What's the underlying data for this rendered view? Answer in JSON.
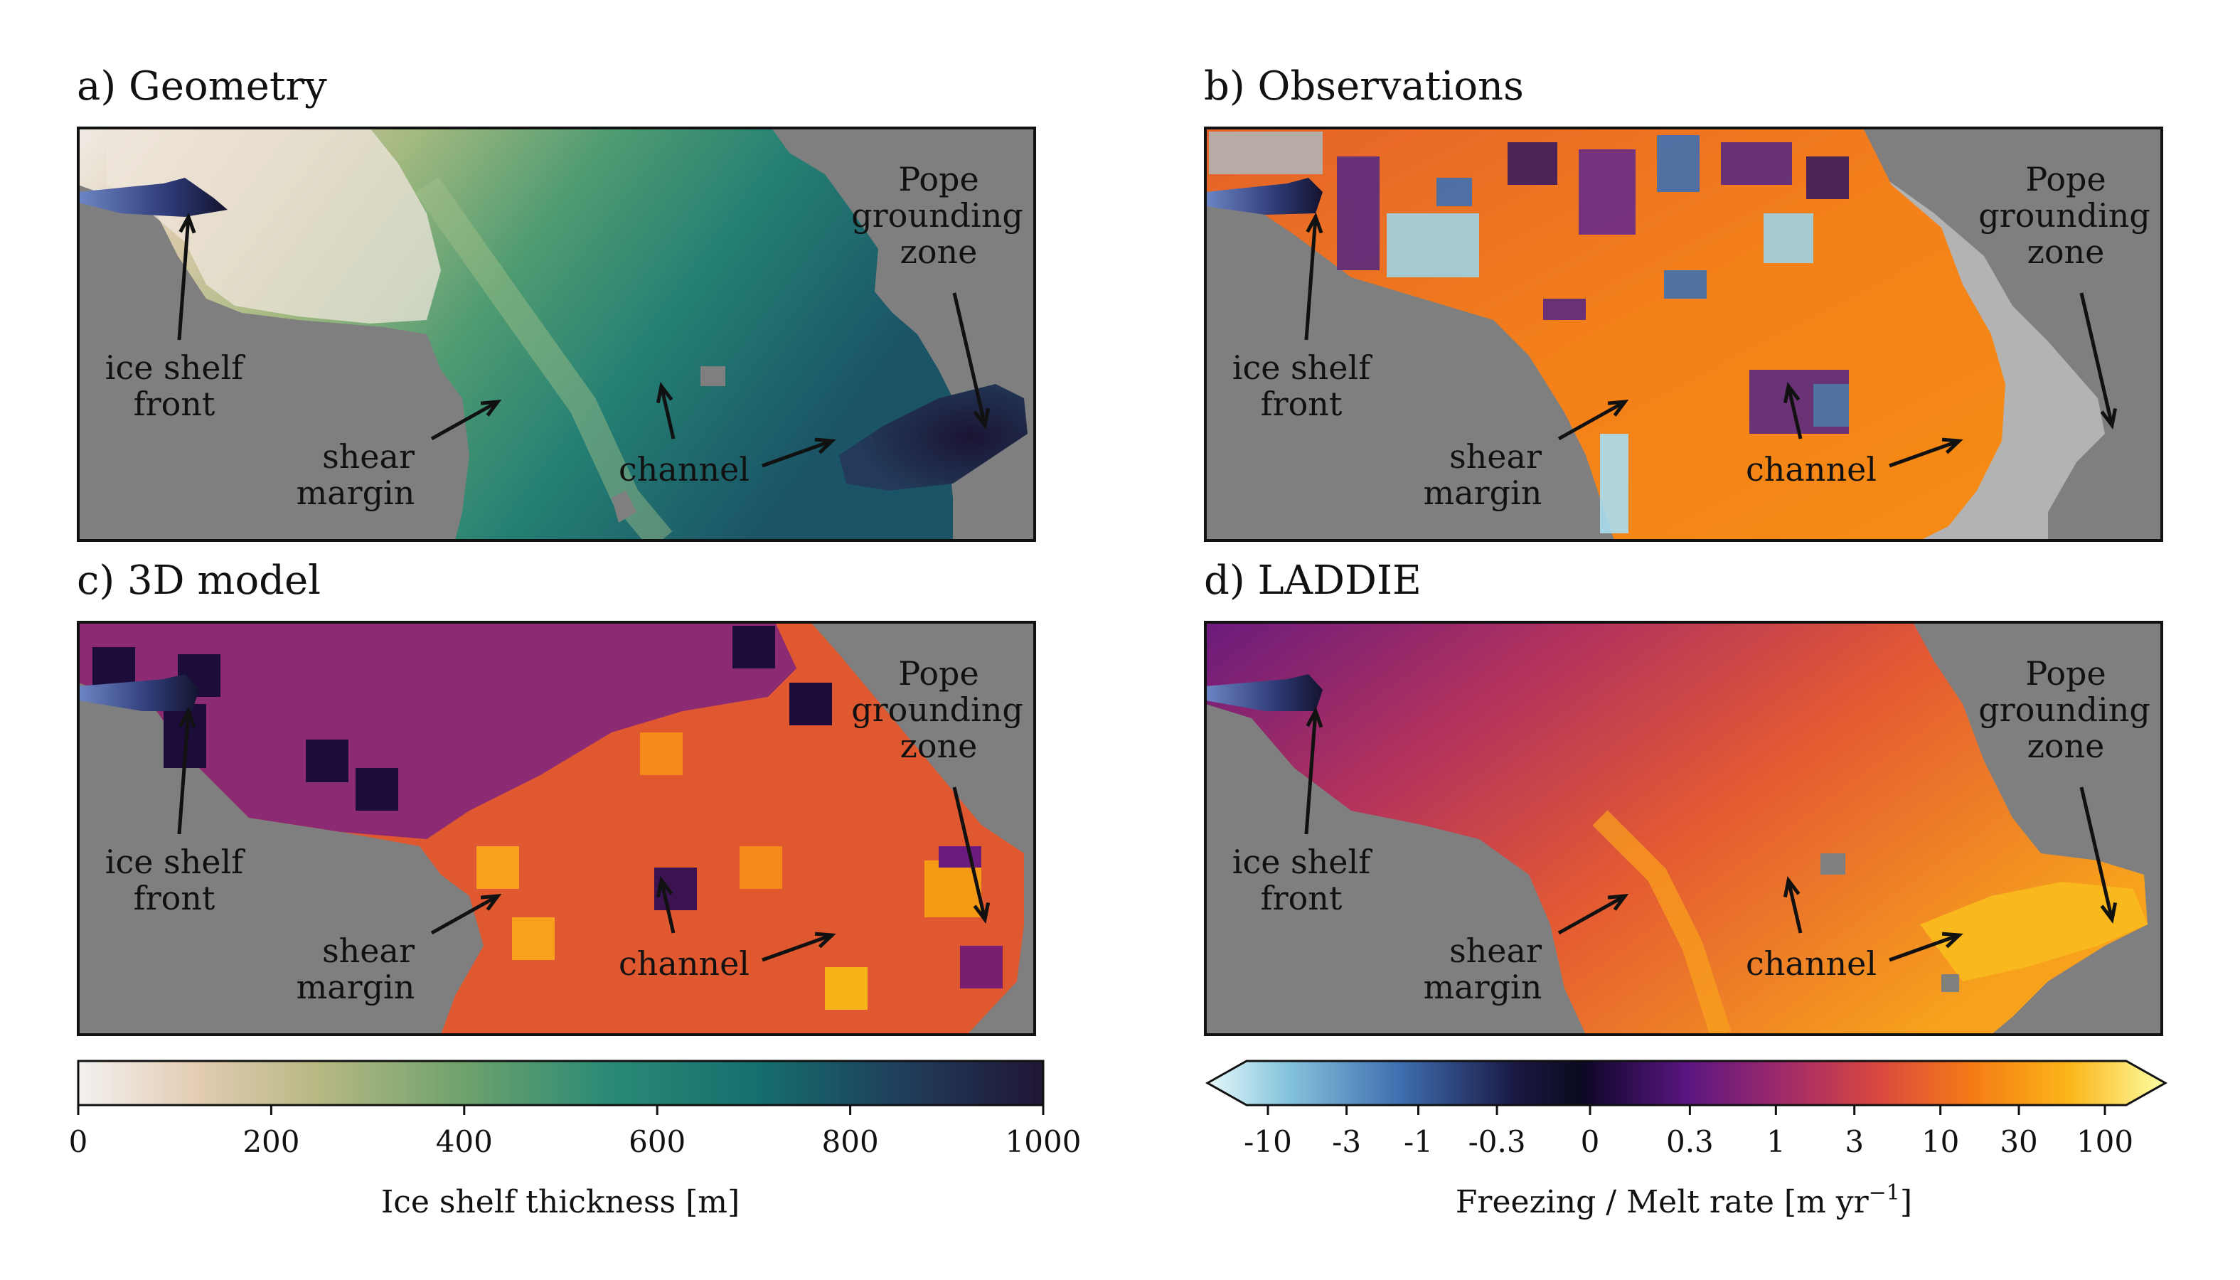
{
  "chart_data": [
    {
      "type": "heatmap",
      "panel": "a",
      "title": "a) Geometry",
      "variable": "Ice shelf thickness [m]",
      "colormap": "white-tan-green-teal-navy",
      "annotations": [
        "ice shelf front",
        "shear margin",
        "channel",
        "Pope grounding zone"
      ]
    },
    {
      "type": "heatmap",
      "panel": "b",
      "title": "b) Observations",
      "variable": "Freezing / Melt rate [m yr-1]",
      "colormap": "blue (freezing) / inferno (melt)",
      "annotations": [
        "ice shelf front",
        "shear margin",
        "channel",
        "Pope grounding zone"
      ]
    },
    {
      "type": "heatmap",
      "panel": "c",
      "title": "c) 3D model",
      "variable": "Freezing / Melt rate [m yr-1]",
      "colormap": "blue (freezing) / inferno (melt)",
      "annotations": [
        "ice shelf front",
        "shear margin",
        "channel",
        "Pope grounding zone"
      ]
    },
    {
      "type": "heatmap",
      "panel": "d",
      "title": "d) LADDIE",
      "variable": "Freezing / Melt rate [m yr-1]",
      "colormap": "blue (freezing) / inferno (melt)",
      "annotations": [
        "ice shelf front",
        "shear margin",
        "channel",
        "Pope grounding zone"
      ]
    }
  ],
  "panels": [
    {
      "title": "a) Geometry"
    },
    {
      "title": "b) Observations"
    },
    {
      "title": "c) 3D model"
    },
    {
      "title": "d) LADDIE"
    }
  ],
  "labels": {
    "ice_shelf_1": "ice shelf",
    "ice_shelf_2": "front",
    "shear_1": "shear",
    "shear_2": "margin",
    "channel": "channel",
    "pope_1": "Pope",
    "pope_2": "grounding",
    "pope_3": "zone"
  },
  "colorbar_thickness": {
    "label": "Ice shelf thickness [m]",
    "ticks": [
      "0",
      "200",
      "400",
      "600",
      "800",
      "1000"
    ],
    "range": [
      0,
      1000
    ]
  },
  "colorbar_melt": {
    "label_main": "Freezing / Melt rate [m yr",
    "label_sup": "−1",
    "label_end": "]",
    "ticks": [
      "-10",
      "-3",
      "-1",
      "-0.3",
      "0",
      "0.3",
      "1",
      "3",
      "10",
      "30",
      "100"
    ],
    "extend": "both"
  },
  "colors": {
    "land": "#7f7f7f",
    "no_data": "#b3b3b3",
    "frame": "#111111"
  }
}
